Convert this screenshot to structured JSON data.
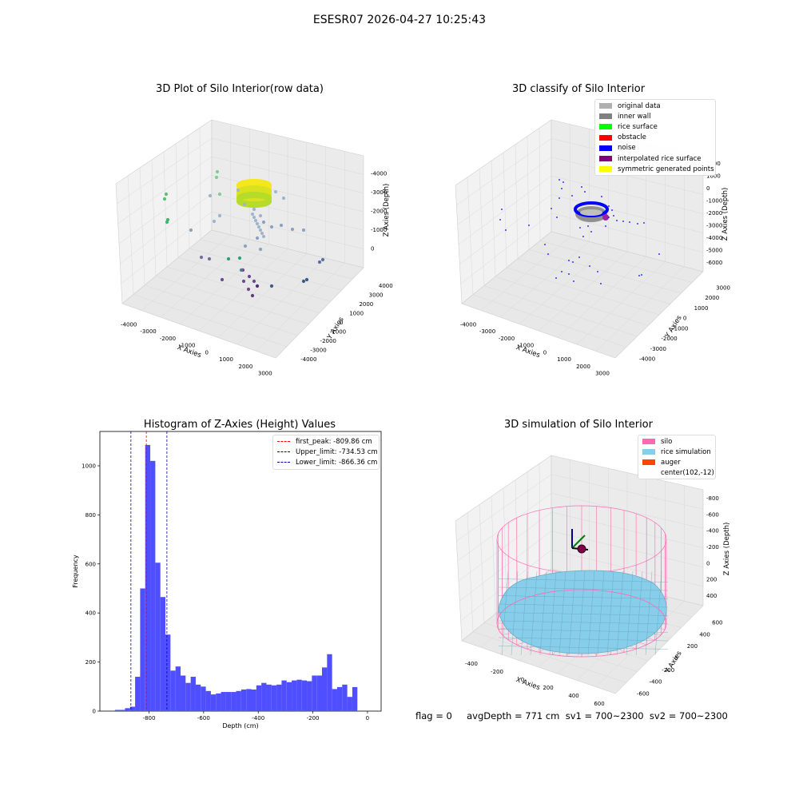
{
  "suptitle": "ESESR07 2026-04-27 10:25:43",
  "footer_text": "flag = 0     avgDepth = 771 cm  sv1 = 700~2300  sv2 = 700~2300",
  "chart_data": [
    {
      "type": "scatter",
      "title": "3D Plot of Silo Interior(row data)",
      "xlabel": "X Axies",
      "ylabel": "Y Axies",
      "zlabel": "Z Axies (Depth)",
      "x_ticks": [
        "-4000",
        "-3000",
        "-2000",
        "-1000",
        "0",
        "1000",
        "2000",
        "3000"
      ],
      "y_ticks": [
        "-4000",
        "-3000",
        "-2000",
        "-1000",
        "0",
        "1000",
        "2000",
        "3000",
        "4000"
      ],
      "z_ticks": [
        "-4000",
        "-3000",
        "-2000",
        "-1000",
        "0"
      ]
    },
    {
      "type": "scatter",
      "title": "3D classify of Silo Interior",
      "xlabel": "X Axies",
      "ylabel": "Y Axies",
      "zlabel": "Z Axies (Depth)",
      "x_ticks": [
        "-4000",
        "-3000",
        "-2000",
        "-1000",
        "0",
        "1000",
        "2000",
        "3000"
      ],
      "y_ticks": [
        "-4000",
        "-3000",
        "-2000",
        "-1000",
        "0",
        "1000",
        "2000",
        "3000"
      ],
      "z_ticks": [
        "-6000",
        "-5000",
        "-4000",
        "-3000",
        "-2000",
        "-1000",
        "0",
        "1000",
        "2000"
      ],
      "legend": [
        {
          "label": "original data",
          "color": "#b0b0b0"
        },
        {
          "label": "inner wall",
          "color": "#808080"
        },
        {
          "label": "rice surface",
          "color": "#00ff00"
        },
        {
          "label": "obstacle",
          "color": "#ff0000"
        },
        {
          "label": "noise",
          "color": "#0000ff"
        },
        {
          "label": "interpolated rice surface",
          "color": "#800080"
        },
        {
          "label": "symmetric generated points",
          "color": "#ffff00"
        }
      ]
    },
    {
      "type": "bar",
      "title": "Histogram of Z-Axies (Height) Values",
      "xlabel": "Depth (cm)",
      "ylabel": "Frequency",
      "xlim": [
        -980,
        50
      ],
      "ylim": [
        0,
        1140
      ],
      "x_ticks": [
        -800,
        -600,
        -400,
        -200,
        0
      ],
      "y_ticks": [
        0,
        200,
        400,
        600,
        800,
        1000
      ],
      "bin_width": 18.5,
      "bins": [
        {
          "x": -925,
          "value": 5
        },
        {
          "x": -906.5,
          "value": 5
        },
        {
          "x": -888,
          "value": 12
        },
        {
          "x": -869.5,
          "value": 18
        },
        {
          "x": -851,
          "value": 140
        },
        {
          "x": -832.5,
          "value": 500
        },
        {
          "x": -814,
          "value": 1085
        },
        {
          "x": -795.5,
          "value": 1020
        },
        {
          "x": -777,
          "value": 605
        },
        {
          "x": -758.5,
          "value": 465
        },
        {
          "x": -740,
          "value": 312
        },
        {
          "x": -721.5,
          "value": 165
        },
        {
          "x": -703,
          "value": 182
        },
        {
          "x": -684.5,
          "value": 145
        },
        {
          "x": -666,
          "value": 115
        },
        {
          "x": -647.5,
          "value": 140
        },
        {
          "x": -629,
          "value": 108
        },
        {
          "x": -610.5,
          "value": 100
        },
        {
          "x": -592,
          "value": 82
        },
        {
          "x": -573.5,
          "value": 68
        },
        {
          "x": -555,
          "value": 72
        },
        {
          "x": -536.5,
          "value": 78
        },
        {
          "x": -518,
          "value": 78
        },
        {
          "x": -499.5,
          "value": 78
        },
        {
          "x": -481,
          "value": 82
        },
        {
          "x": -462.5,
          "value": 88
        },
        {
          "x": -444,
          "value": 90
        },
        {
          "x": -425.5,
          "value": 88
        },
        {
          "x": -407,
          "value": 105
        },
        {
          "x": -388.5,
          "value": 115
        },
        {
          "x": -370,
          "value": 108
        },
        {
          "x": -351.5,
          "value": 105
        },
        {
          "x": -333,
          "value": 108
        },
        {
          "x": -314.5,
          "value": 125
        },
        {
          "x": -296,
          "value": 118
        },
        {
          "x": -277.5,
          "value": 125
        },
        {
          "x": -259,
          "value": 128
        },
        {
          "x": -240.5,
          "value": 125
        },
        {
          "x": -222,
          "value": 122
        },
        {
          "x": -203.5,
          "value": 145
        },
        {
          "x": -185,
          "value": 145
        },
        {
          "x": -166.5,
          "value": 178
        },
        {
          "x": -148,
          "value": 232
        },
        {
          "x": -129.5,
          "value": 90
        },
        {
          "x": -111,
          "value": 98
        },
        {
          "x": -92.5,
          "value": 108
        },
        {
          "x": -74,
          "value": 58
        },
        {
          "x": -55.5,
          "value": 98
        }
      ],
      "vlines": [
        {
          "label": "first_peak: -809.86 cm",
          "value": -809.86,
          "color": "#ff0000"
        },
        {
          "label": "Upper_limit: -734.53 cm",
          "value": -734.53,
          "color": "#0000aa"
        },
        {
          "label": "Lower_limit: -866.36 cm",
          "value": -866.36,
          "color": "#0000aa"
        }
      ],
      "bar_color": "#4f4fff"
    },
    {
      "type": "area",
      "title": "3D simulation of Silo Interior",
      "xlabel": "X Axies",
      "ylabel": "Y Axies",
      "zlabel": "Z Axies (Depth)",
      "x_ticks": [
        "-400",
        "-200",
        "0",
        "200",
        "400",
        "600"
      ],
      "y_ticks": [
        "-600",
        "-400",
        "-200",
        "0",
        "200",
        "400",
        "600"
      ],
      "z_ticks": [
        "-800",
        "-600",
        "-400",
        "-200",
        "0",
        "200",
        "400"
      ],
      "legend": [
        {
          "label": "silo",
          "color": "#ff69b4"
        },
        {
          "label": "rice simulation",
          "color": "#87ceeb"
        },
        {
          "label": "auger",
          "color": "#ff4500"
        },
        {
          "label": "center(102,-12)",
          "color": ""
        }
      ]
    }
  ]
}
